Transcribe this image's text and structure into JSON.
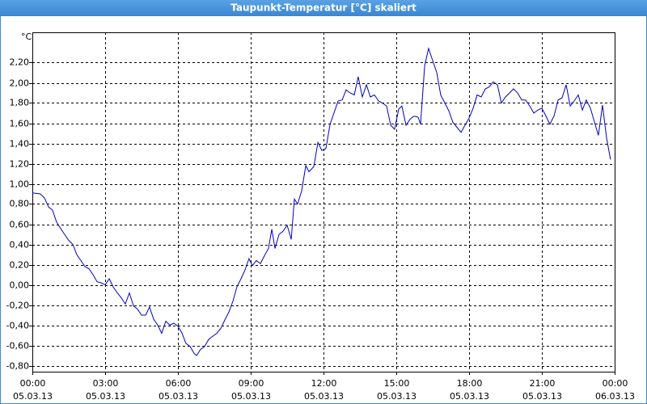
{
  "chart_data": {
    "type": "line",
    "title": "Taupunkt-Temperatur [°C] skaliert",
    "ylabel": "°C",
    "color": "#0000c0",
    "grid": true,
    "xlim": [
      0,
      24
    ],
    "ylim": [
      -0.86,
      2.5
    ],
    "xticks": [
      {
        "value": 0,
        "label": [
          "00:00",
          "05.03.13"
        ]
      },
      {
        "value": 3,
        "label": [
          "03:00",
          "05.03.13"
        ]
      },
      {
        "value": 6,
        "label": [
          "06:00",
          "05.03.13"
        ]
      },
      {
        "value": 9,
        "label": [
          "09:00",
          "05.03.13"
        ]
      },
      {
        "value": 12,
        "label": [
          "12:00",
          "05.03.13"
        ]
      },
      {
        "value": 15,
        "label": [
          "15:00",
          "05.03.13"
        ]
      },
      {
        "value": 18,
        "label": [
          "18:00",
          "05.03.13"
        ]
      },
      {
        "value": 21,
        "label": [
          "21:00",
          "05.03.13"
        ]
      },
      {
        "value": 24,
        "label": [
          "00:00",
          "06.03.13"
        ]
      }
    ],
    "yticks": [
      {
        "value": -0.8,
        "label": "-0,80"
      },
      {
        "value": -0.6,
        "label": "-0,60"
      },
      {
        "value": -0.4,
        "label": "-0,40"
      },
      {
        "value": -0.2,
        "label": "-0,20"
      },
      {
        "value": 0,
        "label": "0,00"
      },
      {
        "value": 0.2,
        "label": "0,20"
      },
      {
        "value": 0.4,
        "label": "0,40"
      },
      {
        "value": 0.6,
        "label": "0,60"
      },
      {
        "value": 0.8,
        "label": "0,80"
      },
      {
        "value": 1.0,
        "label": "1,00"
      },
      {
        "value": 1.2,
        "label": "1,20"
      },
      {
        "value": 1.4,
        "label": "1,40"
      },
      {
        "value": 1.6,
        "label": "1,60"
      },
      {
        "value": 1.8,
        "label": "1,80"
      },
      {
        "value": 2.0,
        "label": "2,00"
      },
      {
        "value": 2.2,
        "label": "2,20"
      }
    ],
    "x": [
      0,
      0.33,
      0.5,
      0.67,
      0.83,
      1,
      1.27,
      1.5,
      1.67,
      1.83,
      2,
      2.17,
      2.33,
      2.5,
      2.67,
      2.83,
      3,
      3.17,
      3.33,
      3.5,
      3.67,
      3.83,
      4,
      4.17,
      4.33,
      4.5,
      4.67,
      4.83,
      5,
      5.17,
      5.33,
      5.5,
      5.67,
      5.83,
      6,
      6.17,
      6.33,
      6.5,
      6.67,
      6.77,
      6.93,
      7.1,
      7.27,
      7.43,
      7.6,
      7.77,
      7.93,
      8.1,
      8.27,
      8.43,
      8.6,
      8.77,
      8.93,
      9.07,
      9.23,
      9.4,
      9.57,
      9.73,
      9.87,
      10,
      10.17,
      10.33,
      10.5,
      10.67,
      10.8,
      10.93,
      11.1,
      11.27,
      11.4,
      11.6,
      11.77,
      11.93,
      12.1,
      12.27,
      12.43,
      12.6,
      12.77,
      12.93,
      13.1,
      13.27,
      13.43,
      13.6,
      13.77,
      13.93,
      14.1,
      14.27,
      14.43,
      14.6,
      14.77,
      14.93,
      15.1,
      15.23,
      15.4,
      15.57,
      15.73,
      15.9,
      16,
      16.17,
      16.33,
      16.5,
      16.67,
      16.83,
      17,
      17.17,
      17.33,
      17.5,
      17.67,
      17.83,
      18,
      18.17,
      18.33,
      18.5,
      18.67,
      18.83,
      19,
      19.17,
      19.33,
      19.5,
      19.67,
      19.83,
      20,
      20.17,
      20.33,
      20.5,
      20.67,
      20.83,
      21,
      21.17,
      21.33,
      21.5,
      21.67,
      21.83,
      22,
      22.17,
      22.33,
      22.5,
      22.67,
      22.83,
      23,
      23.17,
      23.33,
      23.5,
      23.67,
      23.83
    ],
    "values": [
      0.91,
      0.9,
      0.86,
      0.77,
      0.74,
      0.62,
      0.52,
      0.44,
      0.4,
      0.3,
      0.24,
      0.18,
      0.16,
      0.1,
      0.03,
      0.02,
      0.0,
      0.06,
      -0.02,
      -0.08,
      -0.13,
      -0.19,
      -0.08,
      -0.21,
      -0.24,
      -0.3,
      -0.3,
      -0.22,
      -0.34,
      -0.4,
      -0.48,
      -0.36,
      -0.4,
      -0.38,
      -0.41,
      -0.48,
      -0.58,
      -0.61,
      -0.68,
      -0.7,
      -0.64,
      -0.61,
      -0.54,
      -0.51,
      -0.48,
      -0.43,
      -0.35,
      -0.27,
      -0.16,
      -0.02,
      0.06,
      0.15,
      0.26,
      0.19,
      0.24,
      0.21,
      0.29,
      0.36,
      0.55,
      0.36,
      0.5,
      0.53,
      0.59,
      0.45,
      0.85,
      0.8,
      0.93,
      1.18,
      1.12,
      1.17,
      1.41,
      1.33,
      1.35,
      1.59,
      1.7,
      1.82,
      1.83,
      1.93,
      1.9,
      1.88,
      2.06,
      1.86,
      1.98,
      1.86,
      1.88,
      1.82,
      1.8,
      1.77,
      1.58,
      1.54,
      1.74,
      1.77,
      1.58,
      1.64,
      1.67,
      1.66,
      1.59,
      2.17,
      2.34,
      2.22,
      2.1,
      1.88,
      1.8,
      1.72,
      1.61,
      1.56,
      1.51,
      1.58,
      1.65,
      1.75,
      1.88,
      1.86,
      1.94,
      1.96,
      2.01,
      1.98,
      1.8,
      1.86,
      1.9,
      1.94,
      1.9,
      1.83,
      1.83,
      1.77,
      1.7,
      1.73,
      1.75,
      1.67,
      1.59,
      1.67,
      1.83,
      1.85,
      1.98,
      1.77,
      1.82,
      1.88,
      1.73,
      1.83,
      1.75,
      1.61,
      1.48,
      1.78,
      1.45,
      1.24
    ]
  }
}
